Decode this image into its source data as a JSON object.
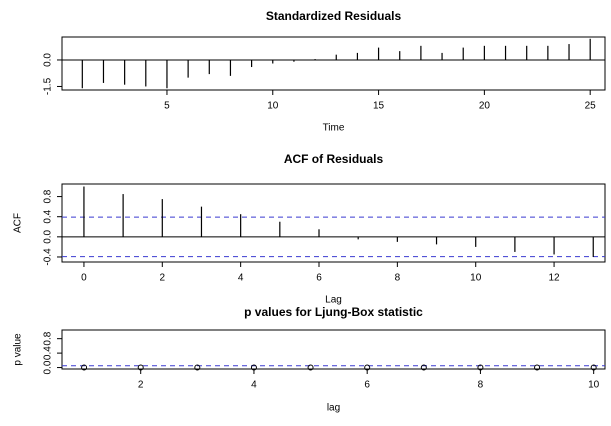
{
  "chart_data": [
    {
      "type": "bar",
      "title": "Standardized Residuals",
      "x_label": "Time",
      "x": [
        1,
        2,
        3,
        4,
        5,
        6,
        7,
        8,
        9,
        10,
        11,
        12,
        13,
        14,
        15,
        16,
        17,
        18,
        19,
        20,
        21,
        22,
        23,
        24,
        25
      ],
      "values": [
        -1.6,
        -1.3,
        -1.4,
        -1.5,
        -1.6,
        -1.0,
        -0.8,
        -0.9,
        -0.4,
        -0.2,
        -0.1,
        0.05,
        0.3,
        0.4,
        0.7,
        0.5,
        0.8,
        0.4,
        0.7,
        0.8,
        0.8,
        0.8,
        0.8,
        0.9,
        1.2
      ],
      "color": "#000000",
      "xlim": [
        0.04,
        25.7
      ],
      "xticks": [
        5,
        10,
        15,
        20,
        25
      ],
      "ylim": [
        -1.7,
        1.3
      ],
      "yticks": [
        -1.5,
        {
          "value": 0,
          "label": "0.0"
        }
      ]
    },
    {
      "type": "bar",
      "title": "ACF of Residuals",
      "x_label": "Lag",
      "y_label": "ACF",
      "x": [
        0,
        1,
        2,
        3,
        4,
        5,
        6,
        7,
        8,
        9,
        10,
        11,
        12,
        13
      ],
      "values": [
        1.0,
        0.85,
        0.75,
        0.6,
        0.45,
        0.3,
        0.15,
        -0.05,
        -0.1,
        -0.15,
        -0.2,
        -0.3,
        -0.35,
        -0.4
      ],
      "color": "#000000",
      "xlim": [
        -0.56,
        13.3
      ],
      "xticks": [
        0,
        2,
        4,
        6,
        8,
        10,
        12
      ],
      "ylim": [
        -0.5,
        1.05
      ],
      "yticks": [
        -0.4,
        {
          "value": 0,
          "label": "0.0"
        },
        0.4,
        0.8
      ],
      "hlines": [
        0.392,
        -0.392
      ],
      "hline_color": "#3a3ad0"
    },
    {
      "type": "scatter",
      "title": "p values for Ljung-Box statistic",
      "x_label": "lag",
      "y_label": "p value",
      "x": [
        1,
        2,
        3,
        4,
        5,
        6,
        7,
        8,
        9,
        10
      ],
      "values": [
        0,
        0,
        0,
        0,
        0,
        0,
        0,
        0,
        0,
        0
      ],
      "color": "#000000",
      "xlim": [
        0.61,
        10.2
      ],
      "xticks": [
        2,
        4,
        6,
        8,
        10
      ],
      "ylim": [
        -0.04,
        1.04
      ],
      "yticks": [
        {
          "value": 0,
          "label": "0.0"
        },
        0.4,
        0.8
      ],
      "hlines": [
        0.05
      ],
      "hline_color": "#3a3ad0"
    }
  ]
}
